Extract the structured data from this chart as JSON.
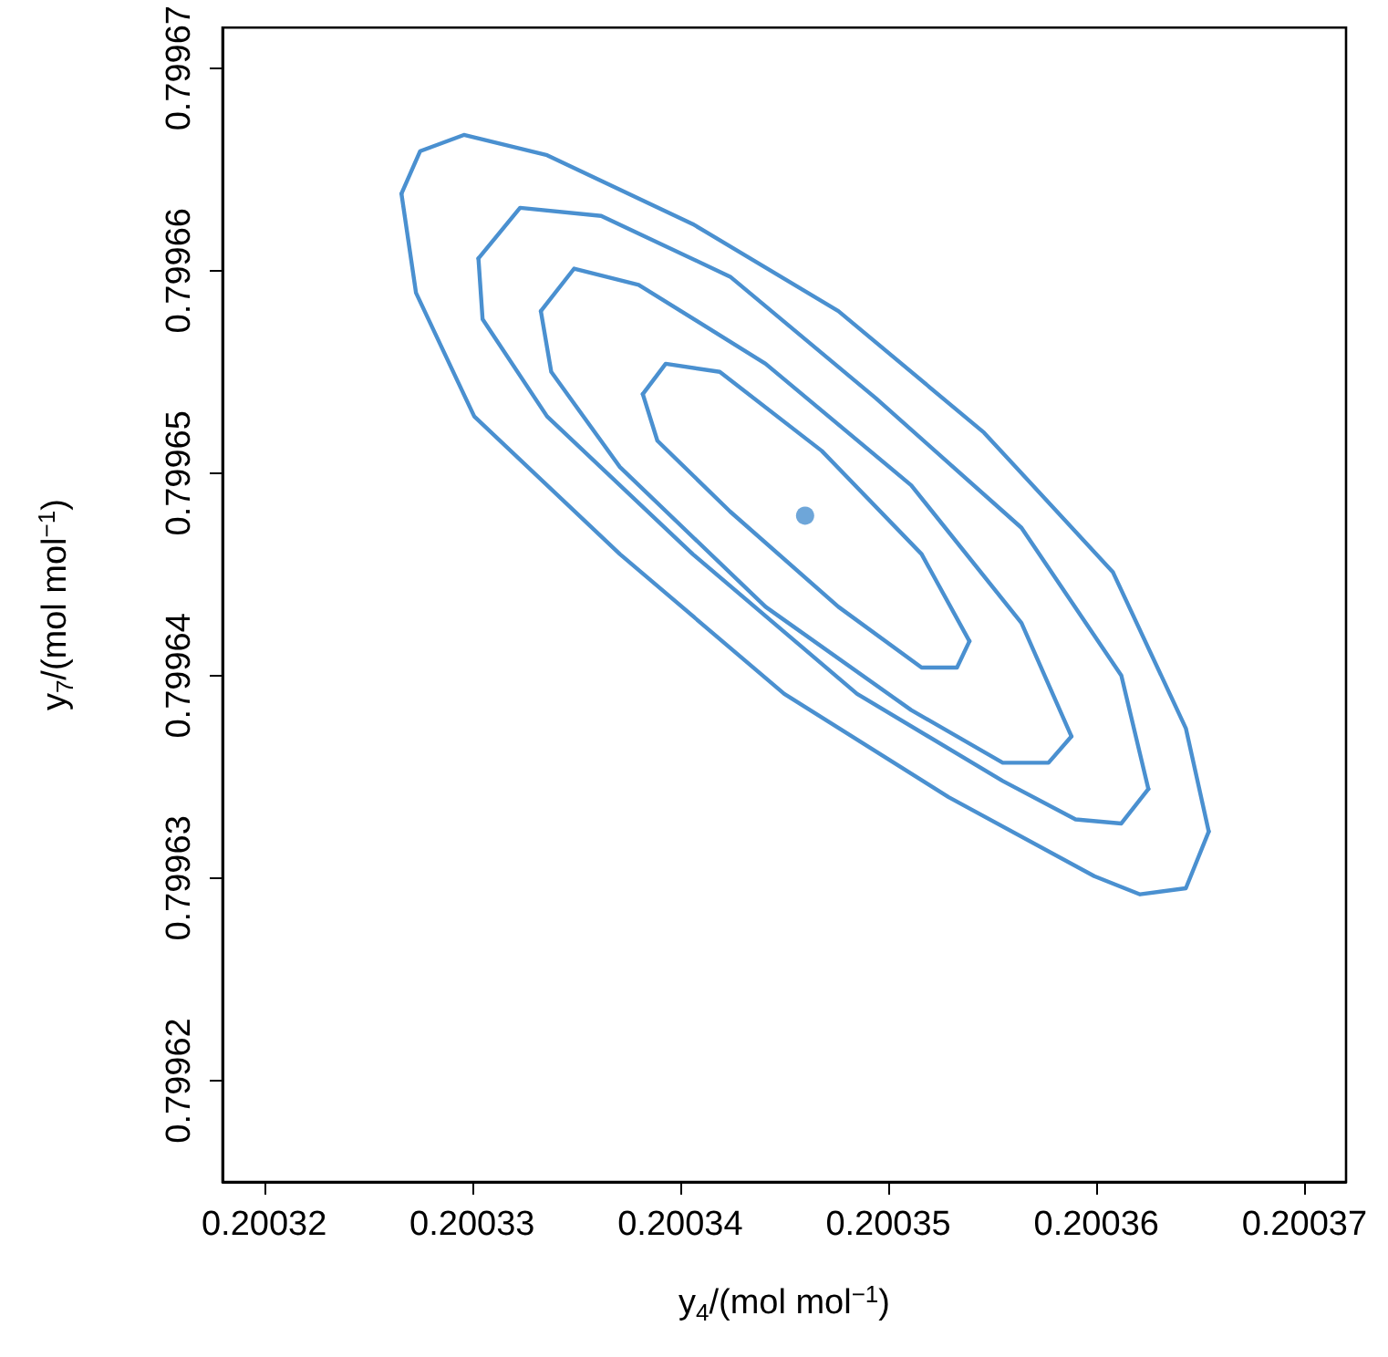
{
  "chart_data": {
    "type": "line",
    "xlabel": "y$_{4}$/(mol mol$^{−1}$)",
    "ylabel": "y$_{7}$/(mol mol$^{−1}$)",
    "xlim": [
      0.200318,
      0.200372
    ],
    "ylim": [
      0.799615,
      0.799672
    ],
    "xticks": [
      0.20032,
      0.20033,
      0.20034,
      0.20035,
      0.20036,
      0.20037
    ],
    "yticks": [
      0.79962,
      0.79963,
      0.79964,
      0.79965,
      0.79966,
      0.79967
    ],
    "grid": false,
    "marker": "none",
    "line_style": "solid",
    "series": [
      {
        "color": "#4a90d0",
        "x": [
          0.2003266,
          0.2003275,
          0.2003296,
          0.2003336,
          0.2003406,
          0.2003476,
          0.2003546,
          0.2003608,
          0.2003643,
          0.2003654
        ],
        "values": [
          0.7996638,
          0.7996659,
          0.7996667,
          0.7996657,
          0.7996623,
          0.799658,
          0.799652,
          0.7996451,
          0.7996374,
          0.7996323
        ]
      },
      {
        "color": "#4a90d0",
        "x": [
          0.2003266,
          0.2003273,
          0.2003301,
          0.2003371,
          0.200345,
          0.2003529,
          0.2003599,
          0.2003621,
          0.2003643,
          0.2003654
        ],
        "values": [
          0.7996638,
          0.7996589,
          0.7996528,
          0.799646,
          0.7996391,
          0.799634,
          0.7996301,
          0.7996292,
          0.7996295,
          0.7996323
        ]
      },
      {
        "color": "#4a90d0",
        "x": [
          0.2003303,
          0.2003323,
          0.2003362,
          0.2003424,
          0.2003494,
          0.2003564,
          0.2003612,
          0.2003625
        ],
        "values": [
          0.7996606,
          0.7996631,
          0.7996627,
          0.7996597,
          0.7996537,
          0.7996473,
          0.79964,
          0.7996344
        ]
      },
      {
        "color": "#4a90d0",
        "x": [
          0.2003303,
          0.2003305,
          0.2003336,
          0.2003406,
          0.2003485,
          0.2003555,
          0.200359,
          0.2003612,
          0.2003625
        ],
        "values": [
          0.7996606,
          0.7996576,
          0.7996528,
          0.799646,
          0.7996391,
          0.7996348,
          0.7996329,
          0.7996327,
          0.7996344
        ]
      },
      {
        "color": "#4a90d0",
        "x": [
          0.2003333,
          0.2003349,
          0.200338,
          0.2003441,
          0.2003511,
          0.2003564,
          0.2003588
        ],
        "values": [
          0.799658,
          0.7996601,
          0.7996593,
          0.7996554,
          0.7996494,
          0.7996426,
          0.799637
        ]
      },
      {
        "color": "#4a90d0",
        "x": [
          0.2003333,
          0.2003338,
          0.2003371,
          0.2003441,
          0.2003511,
          0.2003555,
          0.2003577,
          0.2003588
        ],
        "values": [
          0.799658,
          0.799655,
          0.7996503,
          0.7996434,
          0.7996383,
          0.7996357,
          0.7996357,
          0.799637
        ]
      },
      {
        "color": "#4a90d0",
        "x": [
          0.2003382,
          0.2003393,
          0.2003419,
          0.2003468,
          0.2003516,
          0.2003539
        ],
        "values": [
          0.7996539,
          0.7996554,
          0.799655,
          0.7996511,
          0.799646,
          0.7996417
        ]
      },
      {
        "color": "#4a90d0",
        "x": [
          0.2003382,
          0.2003389,
          0.2003424,
          0.2003476,
          0.2003516,
          0.2003533,
          0.2003539
        ],
        "values": [
          0.7996539,
          0.7996516,
          0.7996481,
          0.7996434,
          0.7996404,
          0.7996404,
          0.7996417
        ]
      },
      {
        "type": "scatter",
        "marker": "circle",
        "color": "#4a90d0",
        "x": [
          0.200346
        ],
        "values": [
          0.7996479
        ]
      }
    ]
  }
}
